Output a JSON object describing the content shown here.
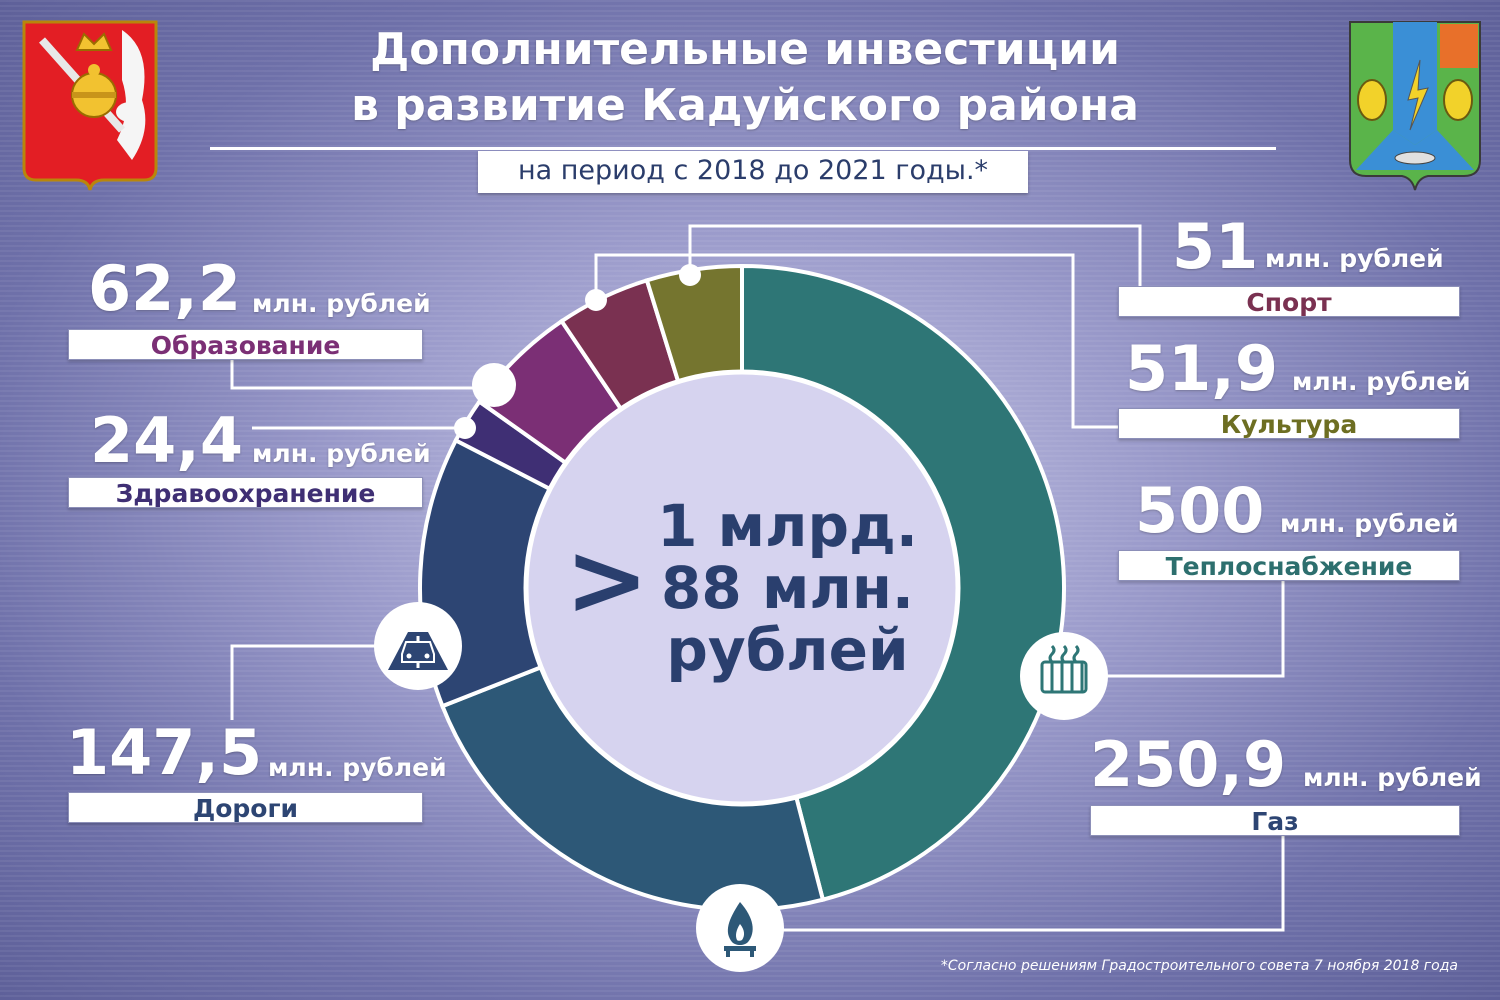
{
  "header": {
    "title_line1": "Дополнительные инвестиции",
    "title_line2": "в развитие Кадуйского района",
    "subtitle": "на период с 2018 до 2021 годы.*"
  },
  "center": {
    "symbol": ">",
    "line1": "1 млрд.",
    "line2": "88 млн.",
    "line3": "рублей"
  },
  "footnote": "*Согласно решениям Градостроительного совета 7 ноября 2018 года",
  "chart_data": {
    "type": "pie",
    "style": "donut",
    "unit": "млн. рублей",
    "categories": [
      "Теплоснабжение",
      "Газ",
      "Дороги",
      "Здравоохранение",
      "Образование",
      "Спорт",
      "Культура"
    ],
    "values": [
      500,
      250.9,
      147.5,
      24.4,
      62.2,
      51,
      51.9
    ],
    "value_labels": [
      "500",
      "250,9",
      "147,5",
      "24,4",
      "62,2",
      "51",
      "51,9"
    ],
    "colors": [
      "#2e7676",
      "#2d5877",
      "#2d4573",
      "#3f2f74",
      "#7b2f75",
      "#7a3151",
      "#75752f"
    ],
    "label_colors": [
      "#2d6f6e",
      "#2d4573",
      "#2d4573",
      "#3f2f74",
      "#7b2f75",
      "#7a3151",
      "#6d6e22"
    ],
    "icons": [
      "radiator-icon",
      "gas-flame-icon",
      "road-car-icon"
    ]
  }
}
